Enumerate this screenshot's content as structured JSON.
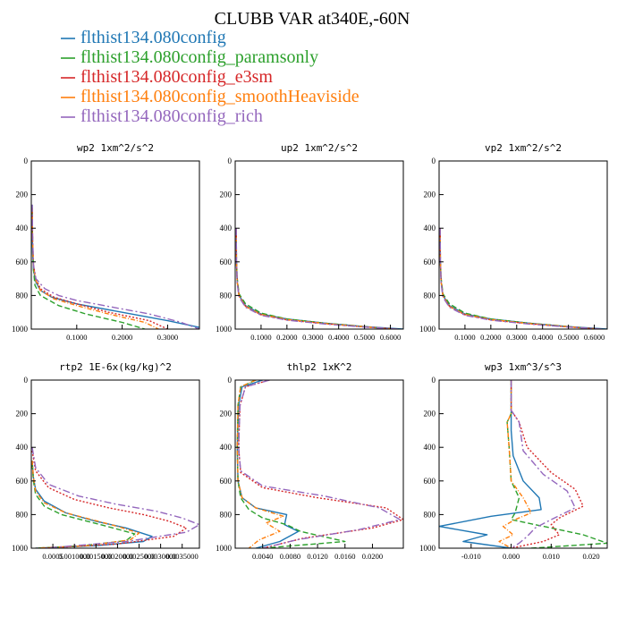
{
  "title": "CLUBB VAR at340E,-60N",
  "legend": [
    {
      "label": "flthist134.080config",
      "color": "#1f77b4",
      "dash": ""
    },
    {
      "label": "flthist134.080config_paramsonly",
      "color": "#2ca02c",
      "dash": "6,3"
    },
    {
      "label": "flthist134.080config_e3sm",
      "color": "#d62728",
      "dash": "2,2"
    },
    {
      "label": "flthist134.080config_smoothHeaviside",
      "color": "#ff7f0e",
      "dash": "5,2,1,2"
    },
    {
      "label": "flthist134.080config_rich",
      "color": "#9467bd",
      "dash": "8,3,2,3"
    }
  ],
  "chart_data": [
    {
      "type": "line",
      "title": "wp2  1xm^2/s^2",
      "xlim": [
        0,
        0.37
      ],
      "ylim": [
        1000,
        0
      ],
      "xticks": [
        0.1,
        0.2,
        0.3
      ],
      "xticklabels": [
        "0.1000",
        "0.2000",
        "0.3000"
      ],
      "yticks": [
        0,
        200,
        400,
        600,
        800,
        1000
      ],
      "yticklabels": [
        "0",
        "200",
        "400",
        "600",
        "800",
        "1000"
      ],
      "series": [
        {
          "x": [
            0.002,
            0.002,
            0.003,
            0.005,
            0.01,
            0.02,
            0.045,
            0.1,
            0.2,
            0.3,
            0.37
          ],
          "y": [
            260,
            400,
            550,
            650,
            720,
            770,
            810,
            850,
            900,
            950,
            990
          ]
        },
        {
          "x": [
            0.002,
            0.003,
            0.005,
            0.008,
            0.02,
            0.06,
            0.12,
            0.2,
            0.25
          ],
          "y": [
            300,
            500,
            650,
            740,
            800,
            860,
            910,
            960,
            1000
          ]
        },
        {
          "x": [
            0.002,
            0.003,
            0.005,
            0.01,
            0.02,
            0.05,
            0.1,
            0.17,
            0.26,
            0.3
          ],
          "y": [
            280,
            480,
            620,
            700,
            760,
            810,
            850,
            900,
            950,
            1000
          ]
        },
        {
          "x": [
            0.002,
            0.003,
            0.005,
            0.01,
            0.02,
            0.05,
            0.1,
            0.17,
            0.25,
            0.28
          ],
          "y": [
            280,
            480,
            630,
            710,
            770,
            820,
            860,
            910,
            960,
            1000
          ]
        },
        {
          "x": [
            0.002,
            0.003,
            0.005,
            0.01,
            0.03,
            0.06,
            0.1,
            0.18,
            0.26,
            0.33,
            0.37
          ],
          "y": [
            260,
            460,
            620,
            700,
            760,
            800,
            830,
            870,
            910,
            960,
            1000
          ]
        }
      ]
    },
    {
      "type": "line",
      "title": "up2  1xm^2/s^2",
      "xlim": [
        0,
        0.65
      ],
      "ylim": [
        1000,
        0
      ],
      "xticks": [
        0.1,
        0.2,
        0.3,
        0.4,
        0.5,
        0.6
      ],
      "xticklabels": [
        "0.1000",
        "0.2000",
        "0.3000",
        "0.4000",
        "0.5000",
        "0.6000"
      ],
      "yticks": [
        0,
        200,
        400,
        600,
        800,
        1000
      ],
      "yticklabels": [
        "0",
        "200",
        "400",
        "600",
        "800",
        "1000"
      ],
      "series": [
        {
          "x": [
            0.004,
            0.005,
            0.008,
            0.015,
            0.04,
            0.1,
            0.2,
            0.35,
            0.5,
            0.65
          ],
          "y": [
            400,
            600,
            720,
            800,
            860,
            910,
            940,
            965,
            985,
            1000
          ]
        },
        {
          "x": [
            0.004,
            0.005,
            0.008,
            0.015,
            0.04,
            0.1,
            0.2,
            0.35,
            0.5,
            0.6
          ],
          "y": [
            400,
            600,
            700,
            790,
            850,
            905,
            940,
            965,
            985,
            1000
          ]
        },
        {
          "x": [
            0.004,
            0.005,
            0.008,
            0.015,
            0.04,
            0.1,
            0.2,
            0.35,
            0.5,
            0.62
          ],
          "y": [
            400,
            600,
            720,
            800,
            865,
            915,
            945,
            968,
            987,
            1000
          ]
        },
        {
          "x": [
            0.004,
            0.005,
            0.008,
            0.015,
            0.04,
            0.1,
            0.2,
            0.35,
            0.5,
            0.62
          ],
          "y": [
            400,
            600,
            720,
            805,
            865,
            912,
            943,
            967,
            986,
            1000
          ]
        },
        {
          "x": [
            0.004,
            0.005,
            0.008,
            0.015,
            0.04,
            0.1,
            0.2,
            0.35,
            0.5,
            0.63
          ],
          "y": [
            400,
            600,
            730,
            810,
            870,
            918,
            947,
            970,
            988,
            1000
          ]
        }
      ]
    },
    {
      "type": "line",
      "title": "vp2  1xm^2/s^2",
      "xlim": [
        0,
        0.65
      ],
      "ylim": [
        1000,
        0
      ],
      "xticks": [
        0.1,
        0.2,
        0.3,
        0.4,
        0.5,
        0.6
      ],
      "xticklabels": [
        "0.1000",
        "0.2000",
        "0.3000",
        "0.4000",
        "0.5000",
        "0.6000"
      ],
      "yticks": [
        0,
        200,
        400,
        600,
        800,
        1000
      ],
      "yticklabels": [
        "0",
        "200",
        "400",
        "600",
        "800",
        "1000"
      ],
      "series": [
        {
          "x": [
            0.004,
            0.005,
            0.008,
            0.015,
            0.04,
            0.1,
            0.2,
            0.35,
            0.5,
            0.65
          ],
          "y": [
            400,
            600,
            720,
            800,
            860,
            910,
            940,
            965,
            985,
            1000
          ]
        },
        {
          "x": [
            0.004,
            0.005,
            0.008,
            0.015,
            0.04,
            0.1,
            0.2,
            0.35,
            0.5,
            0.6
          ],
          "y": [
            400,
            600,
            700,
            790,
            850,
            905,
            940,
            965,
            985,
            1000
          ]
        },
        {
          "x": [
            0.004,
            0.005,
            0.008,
            0.015,
            0.04,
            0.1,
            0.2,
            0.35,
            0.5,
            0.62
          ],
          "y": [
            400,
            600,
            720,
            800,
            865,
            915,
            945,
            968,
            987,
            1000
          ]
        },
        {
          "x": [
            0.004,
            0.005,
            0.008,
            0.015,
            0.04,
            0.1,
            0.2,
            0.35,
            0.5,
            0.62
          ],
          "y": [
            400,
            600,
            720,
            805,
            865,
            912,
            943,
            967,
            986,
            1000
          ]
        },
        {
          "x": [
            0.004,
            0.005,
            0.008,
            0.015,
            0.04,
            0.1,
            0.2,
            0.35,
            0.5,
            0.63
          ],
          "y": [
            400,
            600,
            730,
            810,
            870,
            918,
            947,
            970,
            988,
            1000
          ]
        }
      ]
    },
    {
      "type": "line",
      "title": "rtp2  1E-6x(kg/kg)^2",
      "xlim": [
        0,
        0.0039
      ],
      "ylim": [
        1000,
        0
      ],
      "xticks": [
        0.0005,
        0.001,
        0.0015,
        0.002,
        0.0025,
        0.003,
        0.0035
      ],
      "xticklabels": [
        "0.0005",
        "0.0010000",
        "0.0015000",
        "0.0020000",
        "0.0025000",
        "0.0030000",
        "0.0035000"
      ],
      "yticks": [
        0,
        200,
        400,
        600,
        800,
        1000
      ],
      "yticklabels": [
        "0",
        "200",
        "400",
        "600",
        "800",
        "1000"
      ],
      "series": [
        {
          "x": [
            2e-05,
            5e-05,
            0.0001,
            0.0003,
            0.0008,
            0.0015,
            0.0022,
            0.0028,
            0.0026,
            0.0015,
            0.0001
          ],
          "y": [
            480,
            580,
            650,
            720,
            790,
            840,
            880,
            930,
            960,
            985,
            1000
          ]
        },
        {
          "x": [
            2e-05,
            5e-05,
            0.0001,
            0.0003,
            0.0007,
            0.0013,
            0.0019,
            0.0024,
            0.0022,
            0.0012,
            0.0001
          ],
          "y": [
            500,
            600,
            680,
            750,
            800,
            840,
            880,
            915,
            955,
            985,
            1000
          ]
        },
        {
          "x": [
            2e-05,
            0.0001,
            0.0004,
            0.001,
            0.0018,
            0.0026,
            0.0032,
            0.0036,
            0.0033,
            0.002,
            0.0003
          ],
          "y": [
            420,
            540,
            640,
            710,
            760,
            800,
            840,
            880,
            930,
            975,
            1000
          ]
        },
        {
          "x": [
            2e-05,
            5e-05,
            0.0001,
            0.0003,
            0.0008,
            0.0014,
            0.002,
            0.0025,
            0.0023,
            0.0013,
            0.0001
          ],
          "y": [
            480,
            580,
            660,
            730,
            790,
            830,
            870,
            910,
            950,
            985,
            1000
          ]
        },
        {
          "x": [
            2e-05,
            0.0001,
            0.0004,
            0.0011,
            0.002,
            0.0029,
            0.0035,
            0.0039,
            0.0036,
            0.0022,
            0.0003
          ],
          "y": [
            400,
            520,
            620,
            690,
            740,
            780,
            820,
            860,
            905,
            960,
            1000
          ]
        }
      ]
    },
    {
      "type": "line",
      "title": "thlp2  1xK^2",
      "xlim": [
        0,
        0.0245
      ],
      "ylim": [
        1000,
        0
      ],
      "xticks": [
        0.004,
        0.008,
        0.012,
        0.016,
        0.02
      ],
      "xticklabels": [
        "0.0040",
        "0.0080",
        "0.0120",
        "0.0160",
        "0.0200"
      ],
      "yticks": [
        0,
        200,
        400,
        600,
        800,
        1000
      ],
      "yticklabels": [
        "0",
        "200",
        "400",
        "600",
        "800",
        "1000"
      ],
      "series": [
        {
          "x": [
            0.004,
            0.001,
            0.0005,
            0.0003,
            0.0004,
            0.001,
            0.003,
            0.0075,
            0.0072,
            0.0092,
            0.0065,
            0.003
          ],
          "y": [
            0,
            40,
            150,
            400,
            600,
            700,
            760,
            800,
            860,
            900,
            960,
            1000
          ]
        },
        {
          "x": [
            0.003,
            0.0008,
            0.0004,
            0.0003,
            0.0004,
            0.0008,
            0.002,
            0.004,
            0.0075,
            0.0095,
            0.016,
            0.004
          ],
          "y": [
            0,
            40,
            150,
            400,
            600,
            700,
            770,
            820,
            860,
            900,
            960,
            1000
          ]
        },
        {
          "x": [
            0.005,
            0.0015,
            0.0007,
            0.0005,
            0.0008,
            0.004,
            0.012,
            0.022,
            0.0245,
            0.02,
            0.01,
            0.004
          ],
          "y": [
            0,
            40,
            150,
            400,
            550,
            640,
            700,
            760,
            830,
            880,
            940,
            1000
          ]
        },
        {
          "x": [
            0.003,
            0.0008,
            0.0004,
            0.0003,
            0.0004,
            0.001,
            0.003,
            0.007,
            0.0045,
            0.0065,
            0.0035,
            0.002
          ],
          "y": [
            0,
            40,
            150,
            400,
            600,
            700,
            760,
            810,
            850,
            900,
            950,
            1000
          ]
        },
        {
          "x": [
            0.005,
            0.0015,
            0.0007,
            0.0005,
            0.0008,
            0.004,
            0.013,
            0.021,
            0.024,
            0.018,
            0.009,
            0.004
          ],
          "y": [
            0,
            40,
            150,
            400,
            540,
            630,
            690,
            760,
            830,
            890,
            950,
            1000
          ]
        }
      ]
    },
    {
      "type": "line",
      "title": "wp3  1xm^3/s^3",
      "xlim": [
        -0.018,
        0.024
      ],
      "ylim": [
        1000,
        0
      ],
      "xticks": [
        -0.01,
        0.0,
        0.01,
        0.02
      ],
      "xticklabels": [
        "-0.010",
        "0.000",
        "0.010",
        "0.020"
      ],
      "yticks": [
        0,
        200,
        400,
        600,
        800,
        1000
      ],
      "yticklabels": [
        "0",
        "200",
        "400",
        "600",
        "800",
        "1000"
      ],
      "series": [
        {
          "x": [
            0.0,
            0.0,
            0.0,
            0.0005,
            0.003,
            0.007,
            0.0075,
            -0.005,
            -0.018,
            -0.006,
            -0.012,
            0.0
          ],
          "y": [
            0,
            150,
            300,
            450,
            600,
            700,
            770,
            810,
            870,
            920,
            960,
            1000
          ]
        },
        {
          "x": [
            0.0,
            0.0,
            -0.001,
            -0.0005,
            0.0,
            0.002,
            0.001,
            0.0,
            0.01,
            0.018,
            0.024,
            0.005
          ],
          "y": [
            0,
            200,
            250,
            400,
            600,
            700,
            790,
            830,
            880,
            920,
            970,
            1000
          ]
        },
        {
          "x": [
            0.0,
            0.0,
            0.002,
            0.004,
            0.01,
            0.016,
            0.018,
            0.012,
            0.01,
            0.012,
            0.008,
            0.0
          ],
          "y": [
            0,
            180,
            250,
            400,
            550,
            650,
            750,
            820,
            860,
            920,
            960,
            1000
          ]
        },
        {
          "x": [
            0.0,
            0.0,
            -0.001,
            -0.0005,
            0.0,
            0.003,
            0.005,
            0.001,
            -0.002,
            0.0005,
            -0.003,
            0.0
          ],
          "y": [
            0,
            200,
            250,
            400,
            600,
            700,
            790,
            830,
            870,
            920,
            960,
            1000
          ]
        },
        {
          "x": [
            0.0,
            0.0,
            0.002,
            0.003,
            0.008,
            0.014,
            0.016,
            0.01,
            0.006,
            0.004,
            0.002,
            0.0
          ],
          "y": [
            0,
            180,
            250,
            420,
            560,
            660,
            760,
            830,
            880,
            930,
            970,
            1000
          ]
        }
      ]
    }
  ]
}
